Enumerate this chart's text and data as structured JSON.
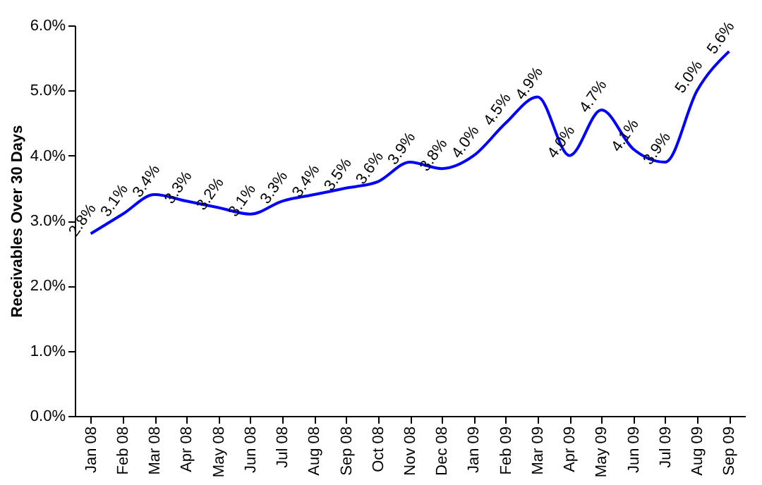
{
  "chart_data": {
    "type": "line",
    "ylabel": "Receivables Over 30 Days",
    "categories": [
      "Jan 08",
      "Feb 08",
      "Mar 08",
      "Apr 08",
      "May 08",
      "Jun 08",
      "Jul 08",
      "Aug 08",
      "Sep 08",
      "Oct 08",
      "Nov 08",
      "Dec 08",
      "Jan 09",
      "Feb 09",
      "Mar 09",
      "Apr 09",
      "May 09",
      "Jun 09",
      "Jul 09",
      "Aug 09",
      "Sep 09"
    ],
    "series": [
      {
        "color": "#0000ff",
        "values": [
          2.8,
          3.1,
          3.4,
          3.3,
          3.2,
          3.1,
          3.3,
          3.4,
          3.5,
          3.6,
          3.9,
          3.8,
          4.0,
          4.5,
          4.9,
          4.0,
          4.7,
          4.1,
          3.9,
          5.0,
          5.6
        ],
        "value_labels": [
          "2.8%",
          "3.1%",
          "3.4%",
          "3.3%",
          "3.2%",
          "3.1%",
          "3.3%",
          "3.4%",
          "3.5%",
          "3.6%",
          "3.9%",
          "3.8%",
          "4.0%",
          "4.5%",
          "4.9%",
          "4.0%",
          "4.7%",
          "4.1%",
          "3.9%",
          "5.0%",
          "5.6%"
        ]
      }
    ],
    "ylim": [
      0,
      6
    ],
    "yticks": [
      {
        "value": 0,
        "label": "0.0%"
      },
      {
        "value": 1,
        "label": "1.0%"
      },
      {
        "value": 2,
        "label": "2.0%"
      },
      {
        "value": 3,
        "label": "3.0%"
      },
      {
        "value": 4,
        "label": "4.0%"
      },
      {
        "value": 5,
        "label": "5.0%"
      },
      {
        "value": 6,
        "label": "6.0%"
      }
    ],
    "grid": false,
    "marker": "none",
    "line_style": "solid"
  }
}
